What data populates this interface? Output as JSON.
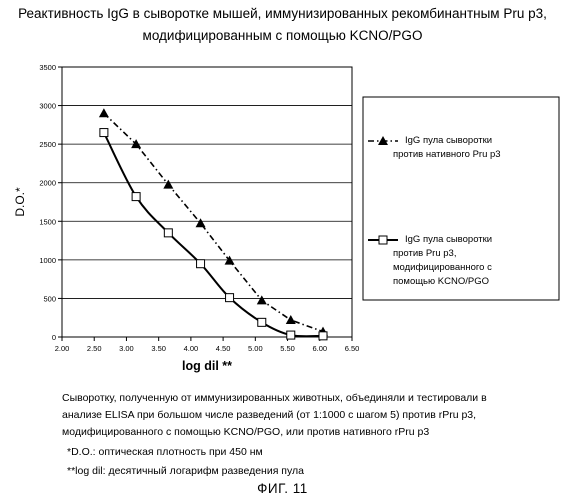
{
  "chart_data": {
    "type": "line",
    "title": "Реактивность IgG в сыворотке мышей, иммунизированных  рекомбинантным Pru p3,",
    "subtitle": "модифицированным с помощью KCNO/PGO",
    "xlabel": "log dil **",
    "ylabel": "D.O.*",
    "xlim": [
      2.0,
      6.5
    ],
    "ylim": [
      0,
      3500
    ],
    "x_ticks": [
      "2.00",
      "2.50",
      "3.00",
      "3.50",
      "4.00",
      "4.50",
      "5.00",
      "5.50",
      "6.00",
      "6.50"
    ],
    "y_ticks": [
      "0",
      "500",
      "1000",
      "1500",
      "2000",
      "2500",
      "3000",
      "3500"
    ],
    "grid": "horizontal",
    "legend_position": "right",
    "series": [
      {
        "name": "IgG пула сыворотки\nпротив нативного Pru p3",
        "marker": "triangle",
        "line": "dash-dot",
        "x": [
          2.65,
          3.15,
          3.65,
          4.15,
          4.6,
          5.1,
          5.55,
          6.05
        ],
        "y": [
          2900,
          2500,
          1975,
          1475,
          990,
          475,
          220,
          70
        ]
      },
      {
        "name": "IgG пула сыворотки\nпротив Pru p3,\nмодифицированного с\nпомощью KCNO/PGO",
        "marker": "square",
        "line": "solid",
        "x": [
          2.65,
          3.15,
          3.65,
          4.15,
          4.6,
          5.1,
          5.55,
          6.05
        ],
        "y": [
          2650,
          1820,
          1350,
          950,
          510,
          190,
          25,
          15
        ]
      }
    ]
  },
  "notes": {
    "line1": "Сыворотку, полученную от иммунизированных животных, объединяли и тестировали в",
    "line2": "анализе ELISA при большом числе разведений (от 1:1000 с шагом 5) против rPru p3,",
    "line3": "модифицированного с помощью KCNO/PGO, или против нативного rPru p3",
    "footnote1": "*D.O.: оптическая плотность при 450 нм",
    "footnote2": "**log dil: десятичный логарифм разведения пула"
  },
  "figure_label": "ФИГ. 11"
}
